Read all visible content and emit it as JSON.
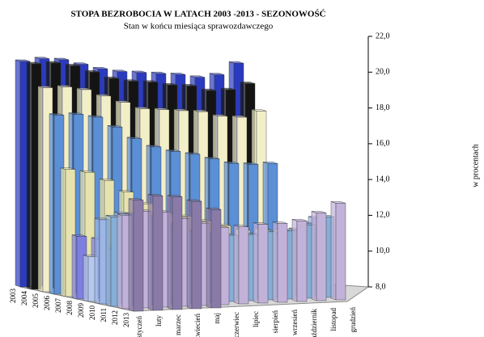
{
  "chart_data": {
    "type": "bar3d",
    "title": "STOPA BEZROBOCIA W LATACH 2003 -2013 - SEZONOWOŚĆ",
    "subtitle": "Stan w końcu miesiąca sprawozdawczego",
    "y_label": "w procentach",
    "categories": [
      "styczeń",
      "luty",
      "marzec",
      "kwiecień",
      "maj",
      "czerwiec",
      "lipiec",
      "sierpień",
      "wrzesień",
      "październik",
      "listopad",
      "grudzień"
    ],
    "series": [
      {
        "name": "2003",
        "color": "#2b3bbf",
        "values": [
          20.6,
          20.7,
          20.6,
          20.3,
          20.0,
          19.8,
          19.7,
          19.6,
          19.5,
          19.3,
          19.4,
          20.0
        ]
      },
      {
        "name": "2004",
        "color": "#141414",
        "values": [
          20.6,
          20.6,
          20.4,
          20.0,
          19.6,
          19.4,
          19.3,
          19.1,
          19.0,
          18.7,
          18.7,
          19.0
        ]
      },
      {
        "name": "2005",
        "color": "#f2efc8",
        "values": [
          19.4,
          19.4,
          19.2,
          18.8,
          18.4,
          18.0,
          17.9,
          17.8,
          17.7,
          17.4,
          17.3,
          17.6
        ]
      },
      {
        "name": "2006",
        "color": "#5b8fd6",
        "values": [
          18.0,
          18.0,
          17.8,
          17.2,
          16.5,
          16.0,
          15.7,
          15.5,
          15.2,
          14.9,
          14.8,
          14.8
        ]
      },
      {
        "name": "2007",
        "color": "#e6e3ae",
        "values": [
          15.1,
          14.9,
          14.4,
          13.7,
          13.0,
          12.4,
          12.2,
          11.9,
          11.6,
          11.3,
          11.3,
          11.2
        ]
      },
      {
        "name": "2008",
        "color": "#7f7fe0",
        "values": [
          11.5,
          11.3,
          10.9,
          10.3,
          9.9,
          9.6,
          9.4,
          9.3,
          9.1,
          9.0,
          9.1,
          9.5
        ]
      },
      {
        "name": "2009",
        "color": "#b4c8f0",
        "values": [
          10.5,
          10.9,
          11.2,
          11.0,
          10.8,
          10.7,
          10.8,
          10.8,
          10.9,
          11.1,
          11.4,
          11.9
        ]
      },
      {
        "name": "2010",
        "color": "#9db6e6",
        "values": [
          12.7,
          13.0,
          12.9,
          12.3,
          11.9,
          11.6,
          11.4,
          11.4,
          11.5,
          11.5,
          11.7,
          12.3
        ]
      },
      {
        "name": "2011",
        "color": "#86aed6",
        "values": [
          13.0,
          13.1,
          12.9,
          12.4,
          12.0,
          11.8,
          11.7,
          11.7,
          11.8,
          11.8,
          12.1,
          12.5
        ]
      },
      {
        "name": "2012",
        "color": "#c2b2da",
        "values": [
          13.2,
          13.4,
          13.3,
          12.9,
          12.6,
          12.3,
          12.3,
          12.4,
          12.4,
          12.5,
          12.9,
          13.4
        ]
      },
      {
        "name": "2013",
        "color": "#8a7aa8",
        "values": [
          14.2,
          14.4,
          14.3,
          14.0,
          13.5,
          null,
          null,
          null,
          null,
          null,
          null,
          null
        ]
      }
    ],
    "ylim": [
      8,
      22
    ],
    "yticks": [
      {
        "value": 8,
        "label": "8,0"
      },
      {
        "value": 10,
        "label": "10,0"
      },
      {
        "value": 12,
        "label": "12,0"
      },
      {
        "value": 14,
        "label": "14,0"
      },
      {
        "value": 16,
        "label": "16,0"
      },
      {
        "value": 18,
        "label": "18,0"
      },
      {
        "value": 20,
        "label": "20,0"
      },
      {
        "value": 22,
        "label": "22,0"
      }
    ]
  }
}
